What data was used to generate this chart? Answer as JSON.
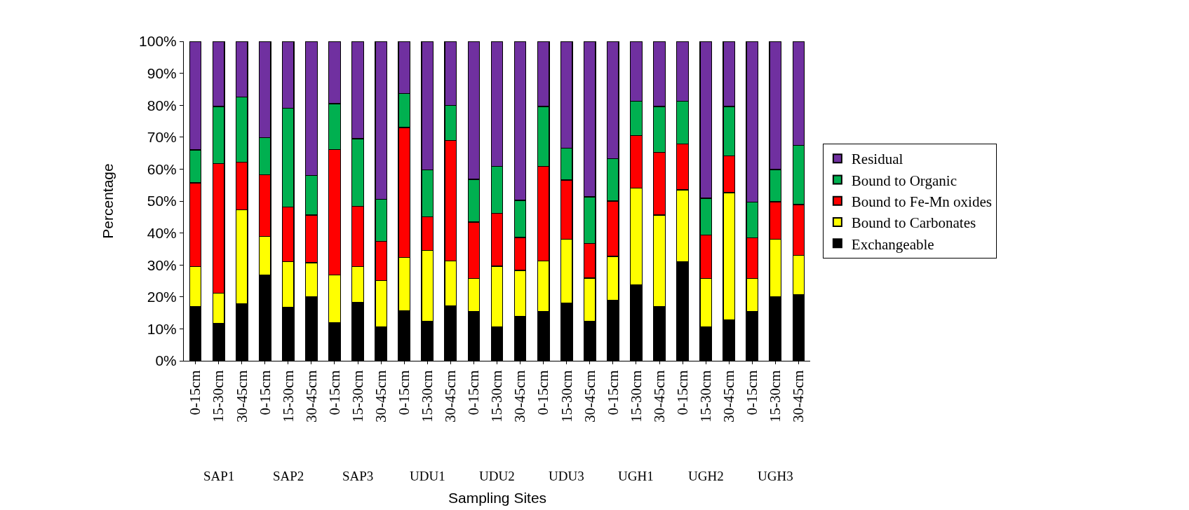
{
  "chart_data": {
    "type": "bar",
    "stacked": true,
    "xlabel": "Sampling Sites",
    "ylabel": "Percentage",
    "categories": [
      "0-15cm",
      "15-30cm",
      "30-45cm",
      "0-15cm",
      "15-30cm",
      "30-45cm",
      "0-15cm",
      "15-30cm",
      "30-45cm",
      "0-15cm",
      "15-30cm",
      "30-45cm",
      "0-15cm",
      "15-30cm",
      "30-45cm",
      "0-15cm",
      "15-30cm",
      "30-45cm",
      "0-15cm",
      "15-30cm",
      "30-45cm",
      "0-15cm",
      "15-30cm",
      "30-45cm",
      "0-15cm",
      "15-30cm",
      "30-45cm"
    ],
    "annotations": [
      "SAP1",
      "SAP2",
      "SAP3",
      "UDU1",
      "UDU2",
      "UDU3",
      "UGH1",
      "UGH2",
      "UGH3"
    ],
    "series": [
      {
        "name": "Exchangeable",
        "color": "#000000",
        "values": [
          16.9,
          11.6,
          17.8,
          26.8,
          16.7,
          20.0,
          12.0,
          18.3,
          10.5,
          15.6,
          12.4,
          17.1,
          15.5,
          10.7,
          14.0,
          15.5,
          18.0,
          12.3,
          18.9,
          23.7,
          16.9,
          31.0,
          10.7,
          12.8,
          15.5,
          20.0,
          20.6
        ]
      },
      {
        "name": "Bound to Carbonates",
        "color": "#ffff00",
        "values": [
          12.6,
          9.5,
          29.5,
          12.1,
          14.3,
          10.7,
          14.8,
          11.2,
          14.6,
          16.8,
          22.2,
          14.2,
          10.2,
          18.9,
          14.3,
          15.7,
          20.0,
          13.6,
          13.8,
          30.3,
          28.7,
          22.5,
          15.0,
          39.8,
          10.2,
          18.0,
          12.4
        ]
      },
      {
        "name": "Bound to Fe-Mn oxides",
        "color": "#ff0000",
        "values": [
          26.2,
          40.6,
          14.9,
          19.3,
          17.1,
          14.9,
          39.3,
          18.9,
          12.3,
          40.6,
          10.5,
          37.7,
          17.7,
          16.6,
          10.3,
          29.6,
          18.6,
          10.8,
          17.3,
          16.5,
          19.6,
          14.4,
          13.7,
          11.6,
          12.8,
          11.8,
          15.9
        ]
      },
      {
        "name": "Bound to Organic",
        "color": "#00b050",
        "values": [
          10.3,
          17.9,
          20.3,
          11.6,
          30.9,
          12.4,
          14.4,
          21.1,
          13.2,
          10.6,
          14.6,
          10.9,
          13.4,
          14.6,
          11.6,
          18.8,
          10.0,
          14.6,
          13.3,
          10.7,
          14.4,
          13.3,
          11.5,
          15.4,
          11.1,
          10.1,
          18.6
        ]
      },
      {
        "name": "Residual",
        "color": "#7030a0",
        "values": [
          34.0,
          20.4,
          17.5,
          30.2,
          21.0,
          42.0,
          19.5,
          30.5,
          49.4,
          16.4,
          40.3,
          20.1,
          43.2,
          39.2,
          49.8,
          20.4,
          33.4,
          48.7,
          36.7,
          18.8,
          20.4,
          18.8,
          49.1,
          20.4,
          50.4,
          40.1,
          32.5
        ]
      }
    ],
    "ylim": [
      0,
      100
    ],
    "yticks": [
      {
        "value": 0,
        "label": "0%"
      },
      {
        "value": 10,
        "label": "10%"
      },
      {
        "value": 20,
        "label": "20%"
      },
      {
        "value": 30,
        "label": "30%"
      },
      {
        "value": 40,
        "label": "40%"
      },
      {
        "value": 50,
        "label": "50%"
      },
      {
        "value": 60,
        "label": "60%"
      },
      {
        "value": 70,
        "label": "70%"
      },
      {
        "value": 80,
        "label": "80%"
      },
      {
        "value": 90,
        "label": "90%"
      },
      {
        "value": 100,
        "label": "100%"
      }
    ],
    "legend": "right"
  }
}
